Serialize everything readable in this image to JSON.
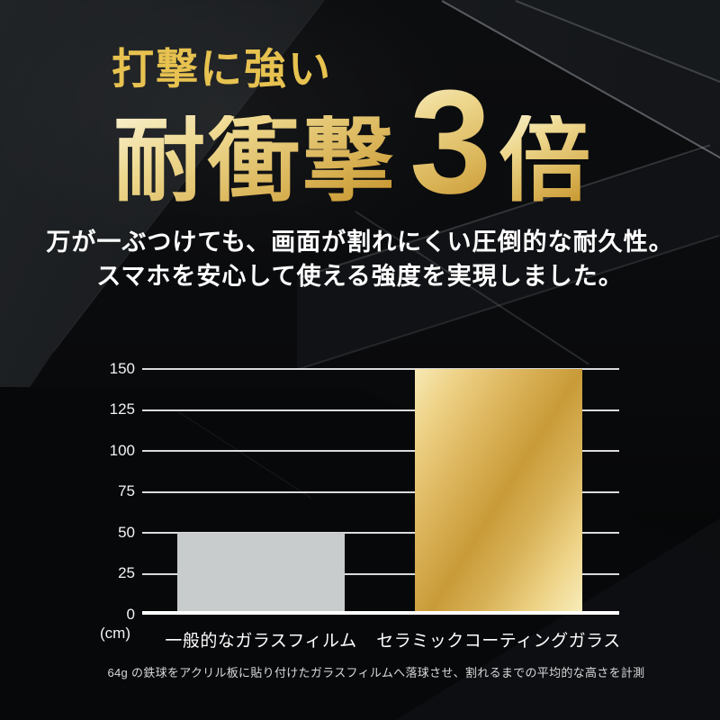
{
  "header": {
    "tagline": "打撃に強い",
    "title_prefix": "耐衝撃",
    "title_number": "3",
    "title_suffix": "倍"
  },
  "description": {
    "line1": "万が一ぶつけても、画面が割れにくい圧倒的な耐久性。",
    "line2": "スマホを安心して使える強度を実現しました。"
  },
  "chart_data": {
    "type": "bar",
    "categories": [
      "一般的なガラスフィルム",
      "セラミックコーティングガラス"
    ],
    "values": [
      50,
      150
    ],
    "unit_label": "(cm)",
    "y_ticks": [
      0,
      25,
      50,
      75,
      100,
      125,
      150
    ],
    "ylim": [
      0,
      150
    ],
    "grid": true,
    "legend": "none",
    "xlabel": "",
    "ylabel": "(cm)"
  },
  "footnote": "64g の鉄球をアクリル板に貼り付けたガラスフィルムへ落球させ、割れるまでの平均的な高さを計測",
  "colors": {
    "background": "#0a0b0d",
    "gold_text": "#e7c250",
    "gold_gradient_light": "#f8f0cd",
    "gold_gradient_dark": "#c49128",
    "bar_gray": "#c9cccd",
    "bar_gold_stops": [
      "#f6e9b4 0%",
      "#eed287 14%",
      "#ddb65e 32%",
      "#c99b38 52%",
      "#d8b258 68%",
      "#eed387 84%",
      "#f8eebd 100%"
    ],
    "gridline": "#eeeeee",
    "baseline": "#ffffff",
    "text_white": "#ffffff",
    "footnote_gray": "#d8d8d8"
  }
}
